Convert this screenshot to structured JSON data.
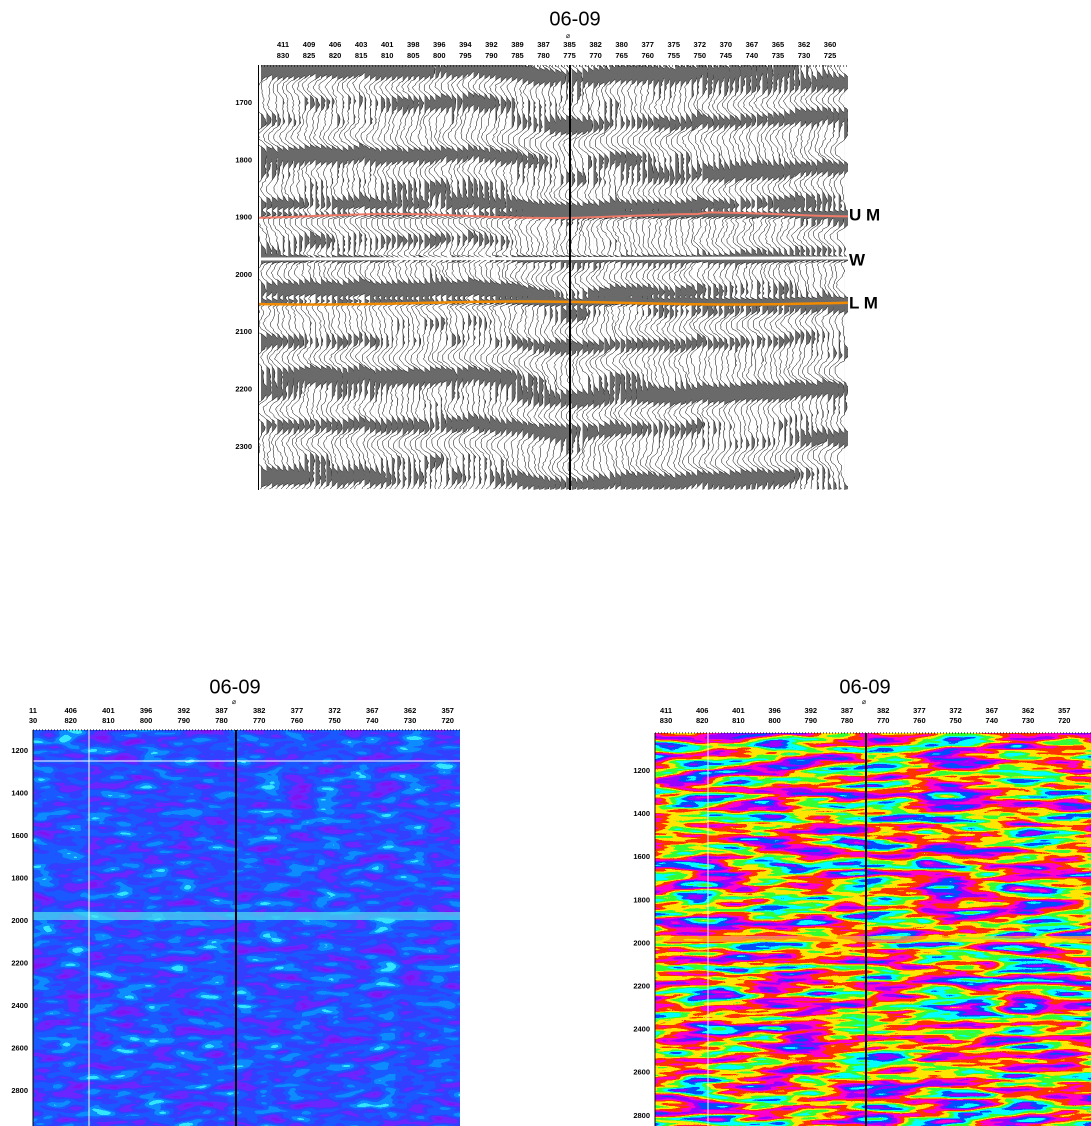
{
  "panels": [
    {
      "title": "06-09",
      "top_labels": [
        "411",
        "409",
        "406",
        "403",
        "401",
        "398",
        "396",
        "394",
        "392",
        "389",
        "387",
        "385",
        "382",
        "380",
        "377",
        "375",
        "372",
        "370",
        "367",
        "365",
        "362",
        "360"
      ],
      "bottom_labels": [
        "830",
        "825",
        "820",
        "815",
        "810",
        "805",
        "800",
        "795",
        "790",
        "785",
        "780",
        "775",
        "770",
        "765",
        "760",
        "755",
        "750",
        "745",
        "740",
        "735",
        "730",
        "725"
      ],
      "y_labels": [
        "1700",
        "1800",
        "1900",
        "2000",
        "2100",
        "2200",
        "2300"
      ],
      "horizons": [
        "U M",
        "W",
        "L M"
      ]
    },
    {
      "title": "06-09",
      "top_labels": [
        "11",
        "406",
        "401",
        "396",
        "392",
        "387",
        "382",
        "377",
        "372",
        "367",
        "362",
        "357"
      ],
      "bottom_labels": [
        "30",
        "820",
        "810",
        "800",
        "790",
        "780",
        "770",
        "760",
        "750",
        "740",
        "730",
        "720"
      ],
      "y_labels": [
        "1200",
        "1400",
        "1600",
        "1800",
        "2000",
        "2200",
        "2400",
        "2600",
        "2800"
      ]
    },
    {
      "title": "06-09",
      "top_labels": [
        "411",
        "406",
        "401",
        "396",
        "392",
        "387",
        "382",
        "377",
        "372",
        "367",
        "362",
        "357"
      ],
      "bottom_labels": [
        "830",
        "820",
        "810",
        "800",
        "790",
        "780",
        "770",
        "760",
        "750",
        "740",
        "730",
        "720"
      ],
      "y_labels": [
        "1200",
        "1400",
        "1600",
        "1800",
        "2000",
        "2200",
        "2400",
        "2600",
        "2800"
      ]
    }
  ]
}
